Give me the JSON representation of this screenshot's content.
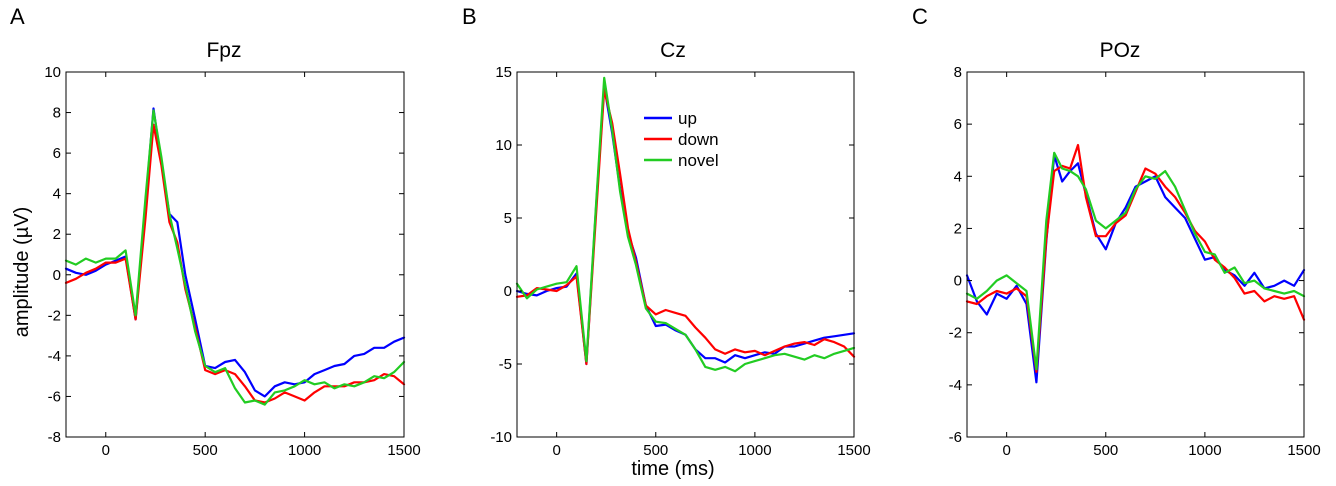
{
  "figure": {
    "ylabel": "amplitude (µV)",
    "xlabel": "time (ms)"
  },
  "legend": {
    "entries": [
      {
        "label": "up",
        "color": "#0000ff"
      },
      {
        "label": "down",
        "color": "#ff0000"
      },
      {
        "label": "novel",
        "color": "#22cc22"
      }
    ],
    "placement": "inside-top-center of panel B"
  },
  "chart_data": [
    {
      "type": "line",
      "panel": "A",
      "title": "Fpz",
      "xlim": [
        -200,
        1500
      ],
      "ylim": [
        -8,
        10
      ],
      "xticks": [
        0,
        500,
        1000,
        1500
      ],
      "yticks": [
        -8,
        -6,
        -4,
        -2,
        0,
        2,
        4,
        6,
        8,
        10
      ],
      "x": [
        -200,
        -150,
        -100,
        -50,
        0,
        50,
        100,
        150,
        200,
        240,
        280,
        320,
        360,
        400,
        450,
        500,
        550,
        600,
        650,
        700,
        750,
        800,
        850,
        900,
        950,
        1000,
        1050,
        1100,
        1150,
        1200,
        1250,
        1300,
        1350,
        1400,
        1450,
        1500
      ],
      "series": [
        {
          "name": "up",
          "color": "#0000ff",
          "values": [
            0.3,
            0.1,
            0.0,
            0.2,
            0.5,
            0.7,
            0.9,
            -2.2,
            3.5,
            8.2,
            5.5,
            3.0,
            2.6,
            0.0,
            -2.2,
            -4.5,
            -4.6,
            -4.3,
            -4.2,
            -4.8,
            -5.7,
            -6.0,
            -5.5,
            -5.3,
            -5.4,
            -5.3,
            -4.9,
            -4.7,
            -4.5,
            -4.4,
            -4.0,
            -3.9,
            -3.6,
            -3.6,
            -3.3,
            -3.1
          ]
        },
        {
          "name": "down",
          "color": "#ff0000",
          "values": [
            -0.4,
            -0.2,
            0.1,
            0.3,
            0.6,
            0.6,
            0.8,
            -2.2,
            2.8,
            7.4,
            5.4,
            2.6,
            1.6,
            -0.7,
            -2.6,
            -4.7,
            -4.9,
            -4.7,
            -4.9,
            -5.5,
            -6.2,
            -6.3,
            -6.1,
            -5.8,
            -6.0,
            -6.2,
            -5.8,
            -5.5,
            -5.5,
            -5.5,
            -5.3,
            -5.3,
            -5.2,
            -4.9,
            -5.0,
            -5.4
          ]
        },
        {
          "name": "novel",
          "color": "#22cc22",
          "values": [
            0.7,
            0.5,
            0.8,
            0.6,
            0.8,
            0.8,
            1.2,
            -2.0,
            3.8,
            8.1,
            5.8,
            3.0,
            1.3,
            -0.5,
            -2.8,
            -4.5,
            -4.8,
            -4.6,
            -5.6,
            -6.3,
            -6.2,
            -6.4,
            -5.8,
            -5.7,
            -5.5,
            -5.2,
            -5.4,
            -5.3,
            -5.6,
            -5.4,
            -5.5,
            -5.3,
            -5.0,
            -5.1,
            -4.8,
            -4.3
          ]
        }
      ]
    },
    {
      "type": "line",
      "panel": "B",
      "title": "Cz",
      "xlim": [
        -200,
        1500
      ],
      "ylim": [
        -10,
        15
      ],
      "xticks": [
        0,
        500,
        1000,
        1500
      ],
      "yticks": [
        -10,
        -5,
        0,
        5,
        10,
        15
      ],
      "x": [
        -200,
        -150,
        -100,
        -50,
        0,
        50,
        100,
        150,
        200,
        240,
        280,
        320,
        360,
        400,
        450,
        500,
        550,
        600,
        650,
        700,
        750,
        800,
        850,
        900,
        950,
        1000,
        1050,
        1100,
        1150,
        1200,
        1250,
        1300,
        1350,
        1400,
        1450,
        1500
      ],
      "series": [
        {
          "name": "up",
          "color": "#0000ff",
          "values": [
            0.0,
            -0.2,
            -0.3,
            0.0,
            0.2,
            0.3,
            1.2,
            -5.0,
            6.0,
            14.0,
            10.8,
            7.0,
            4.0,
            2.3,
            -1.0,
            -2.4,
            -2.3,
            -2.7,
            -3.0,
            -4.0,
            -4.6,
            -4.6,
            -4.9,
            -4.4,
            -4.6,
            -4.4,
            -4.2,
            -4.3,
            -3.8,
            -3.8,
            -3.6,
            -3.4,
            -3.2,
            -3.1,
            -3.0,
            -2.9
          ]
        },
        {
          "name": "down",
          "color": "#ff0000",
          "values": [
            -0.4,
            -0.3,
            0.2,
            0.1,
            0.0,
            0.4,
            1.0,
            -5.0,
            5.5,
            13.8,
            11.5,
            8.0,
            4.3,
            2.0,
            -1.0,
            -1.6,
            -1.3,
            -1.5,
            -1.7,
            -2.5,
            -3.2,
            -4.0,
            -4.3,
            -4.0,
            -4.2,
            -4.1,
            -4.4,
            -4.1,
            -3.8,
            -3.6,
            -3.5,
            -3.7,
            -3.3,
            -3.5,
            -3.8,
            -4.5
          ]
        },
        {
          "name": "novel",
          "color": "#22cc22",
          "values": [
            0.5,
            -0.5,
            0.1,
            0.3,
            0.5,
            0.6,
            1.7,
            -4.8,
            6.2,
            14.6,
            11.0,
            6.8,
            3.7,
            1.8,
            -1.2,
            -2.1,
            -2.2,
            -2.6,
            -3.0,
            -4.0,
            -5.2,
            -5.4,
            -5.2,
            -5.5,
            -5.0,
            -4.8,
            -4.6,
            -4.4,
            -4.3,
            -4.5,
            -4.7,
            -4.4,
            -4.6,
            -4.3,
            -4.1,
            -3.9
          ]
        }
      ]
    },
    {
      "type": "line",
      "panel": "C",
      "title": "POz",
      "xlim": [
        -200,
        1500
      ],
      "ylim": [
        -6,
        8
      ],
      "xticks": [
        0,
        500,
        1000,
        1500
      ],
      "yticks": [
        -6,
        -4,
        -2,
        0,
        2,
        4,
        6,
        8
      ],
      "x": [
        -200,
        -150,
        -100,
        -50,
        0,
        50,
        100,
        150,
        200,
        240,
        280,
        320,
        360,
        400,
        450,
        500,
        550,
        600,
        650,
        700,
        750,
        800,
        850,
        900,
        950,
        1000,
        1050,
        1100,
        1150,
        1200,
        1250,
        1300,
        1350,
        1400,
        1450,
        1500
      ],
      "series": [
        {
          "name": "up",
          "color": "#0000ff",
          "values": [
            0.2,
            -0.8,
            -1.3,
            -0.5,
            -0.7,
            -0.2,
            -0.9,
            -3.9,
            1.5,
            4.8,
            3.8,
            4.2,
            4.5,
            3.3,
            1.8,
            1.2,
            2.2,
            2.8,
            3.6,
            3.8,
            4.0,
            3.2,
            2.8,
            2.4,
            1.6,
            0.8,
            0.9,
            0.4,
            0.2,
            -0.2,
            0.3,
            -0.3,
            -0.2,
            0.0,
            -0.2,
            0.4
          ]
        },
        {
          "name": "down",
          "color": "#ff0000",
          "values": [
            -0.8,
            -0.9,
            -0.6,
            -0.4,
            -0.5,
            -0.3,
            -0.6,
            -3.5,
            1.6,
            4.2,
            4.4,
            4.3,
            5.2,
            3.2,
            1.7,
            1.7,
            2.2,
            2.5,
            3.4,
            4.3,
            4.1,
            3.6,
            3.2,
            2.6,
            1.9,
            1.5,
            0.8,
            0.5,
            0.1,
            -0.5,
            -0.4,
            -0.8,
            -0.6,
            -0.7,
            -0.6,
            -1.5
          ]
        },
        {
          "name": "novel",
          "color": "#22cc22",
          "values": [
            -0.5,
            -0.7,
            -0.4,
            0.0,
            0.2,
            -0.1,
            -0.4,
            -3.4,
            2.3,
            4.9,
            4.3,
            4.2,
            4.0,
            3.5,
            2.3,
            2.0,
            2.3,
            2.6,
            3.5,
            4.0,
            3.9,
            4.2,
            3.6,
            2.7,
            1.8,
            1.1,
            1.0,
            0.3,
            0.5,
            -0.1,
            0.0,
            -0.3,
            -0.4,
            -0.5,
            -0.4,
            -0.6
          ]
        }
      ]
    }
  ]
}
